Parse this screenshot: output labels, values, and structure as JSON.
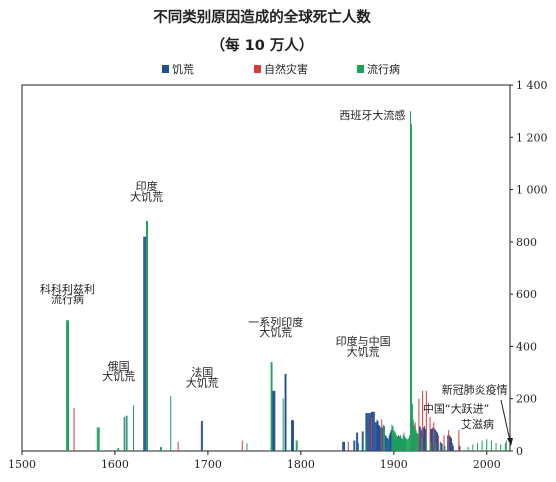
{
  "chart_data": {
    "type": "bar",
    "title": "不同类别原因造成的全球死亡人数",
    "subtitle": "（每 10 万人）",
    "xlim": [
      1500,
      2025
    ],
    "ylim": [
      0,
      1400
    ],
    "x_ticks": [
      1500,
      1600,
      1700,
      1800,
      1900,
      2000
    ],
    "y_ticks": [
      0,
      200,
      400,
      600,
      800,
      1000,
      1200,
      1400
    ],
    "y_tick_labels": [
      "0",
      "200",
      "400",
      "600",
      "800",
      "1 000",
      "1 200",
      "1 400"
    ],
    "y_axis_side": "right",
    "grid": false,
    "legend_position": "top-center",
    "colors": {
      "饥荒": "#1f4e96",
      "自然灾害": "#d93a3a",
      "流行病": "#1aa15a"
    },
    "series": [
      {
        "name": "饥荒",
        "points": [
          [
            1610,
            130
          ],
          [
            1631,
            820
          ],
          [
            1632,
            820
          ],
          [
            1633,
            820
          ],
          [
            1693,
            115
          ],
          [
            1694,
            115
          ],
          [
            1770,
            230
          ],
          [
            1771,
            230
          ],
          [
            1772,
            230
          ],
          [
            1783,
            295
          ],
          [
            1784,
            295
          ],
          [
            1790,
            118
          ],
          [
            1791,
            118
          ],
          [
            1792,
            118
          ],
          [
            1845,
            35
          ],
          [
            1846,
            35
          ],
          [
            1847,
            35
          ],
          [
            1857,
            40
          ],
          [
            1858,
            40
          ],
          [
            1860,
            70
          ],
          [
            1861,
            70
          ],
          [
            1866,
            75
          ],
          [
            1867,
            75
          ],
          [
            1870,
            145
          ],
          [
            1871,
            145
          ],
          [
            1872,
            145
          ],
          [
            1873,
            145
          ],
          [
            1874,
            145
          ],
          [
            1875,
            145
          ],
          [
            1876,
            150
          ],
          [
            1877,
            150
          ],
          [
            1878,
            150
          ],
          [
            1879,
            150
          ],
          [
            1880,
            110
          ],
          [
            1881,
            110
          ],
          [
            1882,
            120
          ],
          [
            1883,
            115
          ],
          [
            1884,
            100
          ],
          [
            1885,
            95
          ],
          [
            1886,
            90
          ],
          [
            1887,
            85
          ],
          [
            1888,
            90
          ],
          [
            1889,
            95
          ],
          [
            1890,
            60
          ],
          [
            1891,
            60
          ],
          [
            1892,
            55
          ],
          [
            1893,
            50
          ],
          [
            1894,
            45
          ],
          [
            1895,
            60
          ],
          [
            1896,
            70
          ],
          [
            1897,
            80
          ],
          [
            1898,
            60
          ],
          [
            1899,
            55
          ],
          [
            1900,
            65
          ],
          [
            1901,
            55
          ],
          [
            1902,
            45
          ],
          [
            1903,
            40
          ],
          [
            1904,
            50
          ],
          [
            1905,
            60
          ],
          [
            1906,
            55
          ],
          [
            1907,
            60
          ],
          [
            1908,
            50
          ],
          [
            1909,
            45
          ],
          [
            1910,
            40
          ],
          [
            1911,
            35
          ],
          [
            1912,
            30
          ],
          [
            1920,
            75
          ],
          [
            1921,
            95
          ],
          [
            1922,
            80
          ],
          [
            1923,
            70
          ],
          [
            1928,
            95
          ],
          [
            1929,
            90
          ],
          [
            1930,
            80
          ],
          [
            1931,
            70
          ],
          [
            1932,
            90
          ],
          [
            1933,
            95
          ],
          [
            1934,
            85
          ],
          [
            1940,
            85
          ],
          [
            1941,
            85
          ],
          [
            1942,
            90
          ],
          [
            1943,
            90
          ],
          [
            1944,
            85
          ],
          [
            1945,
            80
          ],
          [
            1946,
            75
          ],
          [
            1947,
            70
          ],
          [
            1950,
            35
          ],
          [
            1951,
            30
          ],
          [
            1952,
            28
          ],
          [
            1958,
            60
          ],
          [
            1959,
            55
          ],
          [
            1960,
            60
          ],
          [
            1961,
            55
          ],
          [
            1962,
            50
          ],
          [
            1963,
            30
          ],
          [
            1964,
            20
          ],
          [
            1970,
            25
          ],
          [
            1971,
            20
          ]
        ]
      },
      {
        "name": "自然灾害",
        "points": [
          [
            1556,
            165
          ],
          [
            1668,
            35
          ],
          [
            1737,
            40
          ],
          [
            1851,
            35
          ],
          [
            1876,
            130
          ],
          [
            1887,
            120
          ],
          [
            1920,
            115
          ],
          [
            1923,
            110
          ],
          [
            1927,
            200
          ],
          [
            1931,
            230
          ],
          [
            1935,
            230
          ],
          [
            1939,
            130
          ],
          [
            1943,
            110
          ],
          [
            1948,
            60
          ],
          [
            1954,
            60
          ],
          [
            1959,
            80
          ],
          [
            1970,
            80
          ]
        ]
      },
      {
        "name": "流行病",
        "points": [
          [
            1548,
            500
          ],
          [
            1549,
            500
          ],
          [
            1550,
            500
          ],
          [
            1581,
            90
          ],
          [
            1582,
            90
          ],
          [
            1583,
            90
          ],
          [
            1603,
            10
          ],
          [
            1604,
            12
          ],
          [
            1612,
            135
          ],
          [
            1613,
            135
          ],
          [
            1620,
            175
          ],
          [
            1634,
            880
          ],
          [
            1635,
            880
          ],
          [
            1649,
            15
          ],
          [
            1650,
            15
          ],
          [
            1660,
            210
          ],
          [
            1742,
            30
          ],
          [
            1768,
            340
          ],
          [
            1769,
            340
          ],
          [
            1781,
            200
          ],
          [
            1795,
            40
          ],
          [
            1796,
            40
          ],
          [
            1862,
            30
          ],
          [
            1870,
            60
          ],
          [
            1889,
            100
          ],
          [
            1890,
            95
          ],
          [
            1898,
            100
          ],
          [
            1899,
            95
          ],
          [
            1900,
            80
          ],
          [
            1901,
            75
          ],
          [
            1902,
            70
          ],
          [
            1903,
            60
          ],
          [
            1904,
            55
          ],
          [
            1905,
            55
          ],
          [
            1906,
            50
          ],
          [
            1907,
            50
          ],
          [
            1908,
            45
          ],
          [
            1909,
            40
          ],
          [
            1910,
            60
          ],
          [
            1911,
            70
          ],
          [
            1912,
            55
          ],
          [
            1913,
            50
          ],
          [
            1914,
            45
          ],
          [
            1915,
            45
          ],
          [
            1916,
            50
          ],
          [
            1917,
            60
          ],
          [
            1918,
            1300
          ],
          [
            1919,
            1250
          ],
          [
            1920,
            180
          ],
          [
            1921,
            120
          ],
          [
            1922,
            100
          ],
          [
            1923,
            90
          ],
          [
            1924,
            80
          ],
          [
            1925,
            70
          ],
          [
            1926,
            65
          ],
          [
            1930,
            50
          ],
          [
            1935,
            50
          ],
          [
            1940,
            35
          ],
          [
            1945,
            30
          ],
          [
            1950,
            25
          ],
          [
            1955,
            20
          ],
          [
            1980,
            15
          ],
          [
            1985,
            25
          ],
          [
            1990,
            30
          ],
          [
            1995,
            40
          ],
          [
            2000,
            45
          ],
          [
            2005,
            40
          ],
          [
            2010,
            30
          ],
          [
            2015,
            25
          ],
          [
            2020,
            30
          ],
          [
            2021,
            40
          ]
        ]
      }
    ],
    "annotations": [
      {
        "text": "科科利兹利",
        "x": 1549,
        "y": 605
      },
      {
        "text": "流行病",
        "x": 1549,
        "y": 566
      },
      {
        "text": "印度",
        "x": 1634,
        "y": 998
      },
      {
        "text": "大饥荒",
        "x": 1634,
        "y": 959
      },
      {
        "text": "俄国",
        "x": 1604,
        "y": 310
      },
      {
        "text": "大饥荒",
        "x": 1604,
        "y": 271
      },
      {
        "text": "法国",
        "x": 1694,
        "y": 286
      },
      {
        "text": "大饥荒",
        "x": 1694,
        "y": 247
      },
      {
        "text": "一系列印度",
        "x": 1773,
        "y": 478
      },
      {
        "text": "大饥荒",
        "x": 1773,
        "y": 439
      },
      {
        "text": "印度与中国",
        "x": 1867,
        "y": 405
      },
      {
        "text": "大饥荒",
        "x": 1867,
        "y": 366
      },
      {
        "text": "西班牙大流感",
        "x": 1877,
        "y": 1270
      },
      {
        "text": "新冠肺炎疫情",
        "x": 1987,
        "y": 220
      },
      {
        "text": "中国“大跃进”",
        "x": 1967,
        "y": 147
      },
      {
        "text": "艾滋病",
        "x": 1990,
        "y": 88
      }
    ]
  }
}
